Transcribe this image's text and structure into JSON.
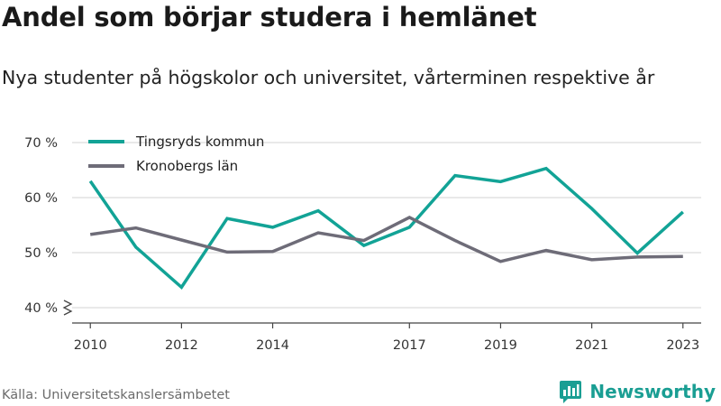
{
  "title": "Andel som börjar studera i hemlänet",
  "subtitle": "Nya studenter på högskolor och universitet, vårterminen respektive år",
  "source": "Källa: Universitetskanslersämbetet",
  "brand": {
    "name": "Newsworthy",
    "icon": "bar-chart-bubble-icon",
    "color": "#1a9e93"
  },
  "chart_data": {
    "type": "line",
    "x": [
      2010,
      2011,
      2012,
      2013,
      2014,
      2015,
      2016,
      2017,
      2018,
      2019,
      2020,
      2021,
      2022,
      2023
    ],
    "x_ticks": [
      2010,
      2012,
      2014,
      2017,
      2019,
      2021,
      2023
    ],
    "y_ticks": [
      40,
      50,
      60,
      70
    ],
    "y_tick_labels": [
      "40 %",
      "50 %",
      "60 %",
      "70 %"
    ],
    "ylim": [
      40,
      70
    ],
    "xlim": [
      2009.6,
      2023.4
    ],
    "grid": true,
    "axis_break": true,
    "legend_position": "top-left",
    "xlabel": "",
    "ylabel": "",
    "series": [
      {
        "name": "Tingsryds kommun",
        "color": "#12a396",
        "values": [
          63.0,
          51.0,
          43.7,
          56.2,
          54.6,
          57.6,
          51.3,
          54.6,
          64.0,
          62.9,
          65.3,
          58.0,
          49.9,
          57.4
        ]
      },
      {
        "name": "Kronobergs län",
        "color": "#6e6c78",
        "values": [
          53.3,
          54.5,
          52.3,
          50.1,
          50.2,
          53.6,
          52.2,
          56.4,
          52.2,
          48.4,
          50.4,
          48.7,
          49.2,
          49.3
        ]
      }
    ]
  }
}
